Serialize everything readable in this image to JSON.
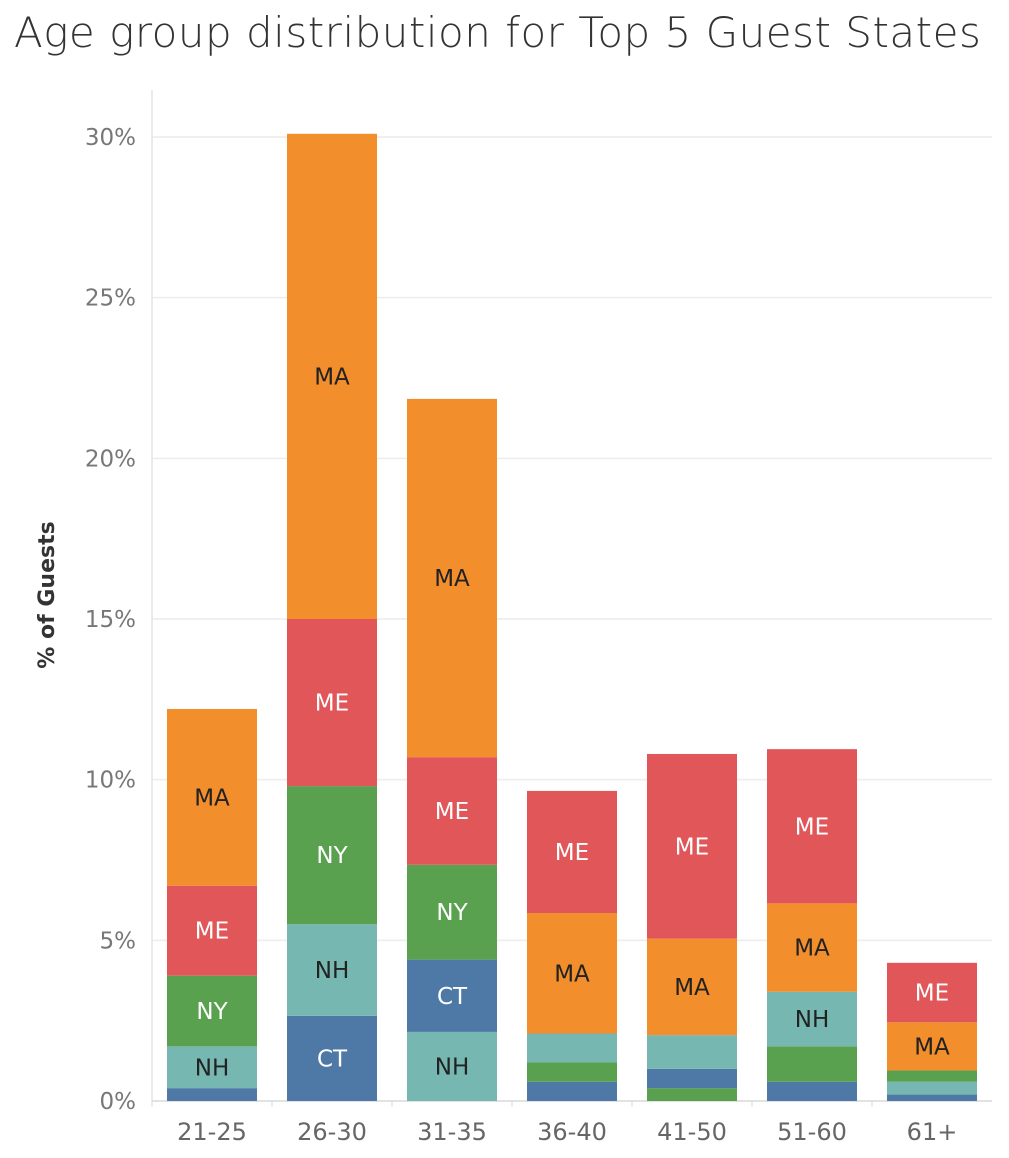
{
  "chart_data": {
    "type": "bar",
    "stacked": true,
    "title": "Age group distribution for Top 5 Guest States",
    "ylabel": "% of Guests",
    "xlabel": "",
    "ylim": [
      0,
      31
    ],
    "yticks": [
      0,
      5,
      10,
      15,
      20,
      25,
      30
    ],
    "ytick_labels": [
      "0%",
      "5%",
      "10%",
      "15%",
      "20%",
      "25%",
      "30%"
    ],
    "grid": true,
    "categories": [
      "21-25",
      "26-30",
      "31-35",
      "36-40",
      "41-50",
      "51-60",
      "61+"
    ],
    "bars": [
      {
        "category": "21-25",
        "segments": [
          {
            "state": "CT",
            "value": 0.4
          },
          {
            "state": "NH",
            "value": 1.3,
            "label": "NH"
          },
          {
            "state": "NY",
            "value": 2.2,
            "label": "NY"
          },
          {
            "state": "ME",
            "value": 2.8,
            "label": "ME"
          },
          {
            "state": "MA",
            "value": 5.5,
            "label": "MA"
          }
        ]
      },
      {
        "category": "26-30",
        "segments": [
          {
            "state": "CT",
            "value": 2.65,
            "label": "CT"
          },
          {
            "state": "NH",
            "value": 2.85,
            "label": "NH"
          },
          {
            "state": "NY",
            "value": 4.3,
            "label": "NY"
          },
          {
            "state": "ME",
            "value": 5.2,
            "label": "ME"
          },
          {
            "state": "MA",
            "value": 15.1,
            "label": "MA"
          }
        ]
      },
      {
        "category": "31-35",
        "segments": [
          {
            "state": "NH",
            "value": 2.15,
            "label": "NH"
          },
          {
            "state": "CT",
            "value": 2.25,
            "label": "CT"
          },
          {
            "state": "NY",
            "value": 2.95,
            "label": "NY"
          },
          {
            "state": "ME",
            "value": 3.35,
            "label": "ME"
          },
          {
            "state": "MA",
            "value": 11.15,
            "label": "MA"
          }
        ]
      },
      {
        "category": "36-40",
        "segments": [
          {
            "state": "CT",
            "value": 0.6
          },
          {
            "state": "NY",
            "value": 0.6
          },
          {
            "state": "NH",
            "value": 0.9
          },
          {
            "state": "MA",
            "value": 3.75,
            "label": "MA"
          },
          {
            "state": "ME",
            "value": 3.8,
            "label": "ME"
          }
        ]
      },
      {
        "category": "41-50",
        "segments": [
          {
            "state": "NY",
            "value": 0.4
          },
          {
            "state": "CT",
            "value": 0.6
          },
          {
            "state": "NH",
            "value": 1.05
          },
          {
            "state": "MA",
            "value": 3.0,
            "label": "MA"
          },
          {
            "state": "ME",
            "value": 5.75,
            "label": "ME"
          }
        ]
      },
      {
        "category": "51-60",
        "segments": [
          {
            "state": "CT",
            "value": 0.6
          },
          {
            "state": "NY",
            "value": 1.1
          },
          {
            "state": "NH",
            "value": 1.7,
            "label": "NH"
          },
          {
            "state": "MA",
            "value": 2.75,
            "label": "MA"
          },
          {
            "state": "ME",
            "value": 4.8,
            "label": "ME"
          }
        ]
      },
      {
        "category": "61+",
        "segments": [
          {
            "state": "CT",
            "value": 0.2
          },
          {
            "state": "NH",
            "value": 0.4
          },
          {
            "state": "NY",
            "value": 0.35
          },
          {
            "state": "MA",
            "value": 1.5,
            "label": "MA"
          },
          {
            "state": "ME",
            "value": 1.85,
            "label": "ME"
          }
        ]
      }
    ],
    "colors": {
      "CT": "#4e79a7",
      "NH": "#76b7b2",
      "NY": "#59a14f",
      "ME": "#e15759",
      "MA": "#f28e2b"
    },
    "label_colors": {
      "CT": "#ffffff",
      "NH": "#222222",
      "NY": "#ffffff",
      "ME": "#ffffff",
      "MA": "#222222"
    }
  }
}
